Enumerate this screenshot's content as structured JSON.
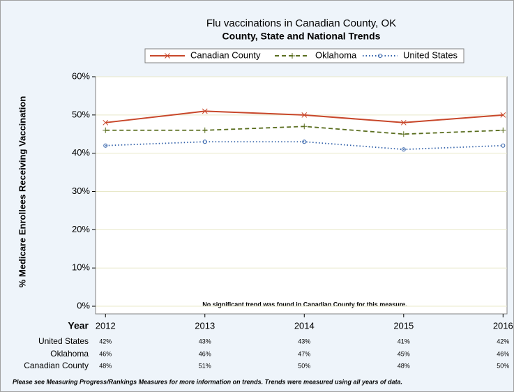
{
  "chart_data": {
    "type": "line",
    "title": "Flu vaccinations in Canadian County, OK",
    "subtitle": "County, State and National Trends",
    "ylabel": "% Medicare Enrollees Receiving Vaccination",
    "xlabel": "Year",
    "annotation": "No significant trend was found in Canadian County for this measure.",
    "footnote": "Please see Measuring Progress/Rankings Measures for more information on trends. Trends were measured using all years of data.",
    "x": [
      2012,
      2013,
      2014,
      2015,
      2016
    ],
    "xlim": [
      2011.9,
      2016.04
    ],
    "xticks": [
      2012,
      2013,
      2014,
      2015,
      2016
    ],
    "ylim": [
      -2,
      60
    ],
    "yticks": [
      {
        "value": 0,
        "label": "0%"
      },
      {
        "value": 10,
        "label": "10%"
      },
      {
        "value": 20,
        "label": "20%"
      },
      {
        "value": 30,
        "label": "30%"
      },
      {
        "value": 40,
        "label": "40%"
      },
      {
        "value": 50,
        "label": "50%"
      },
      {
        "value": 60,
        "label": "60%"
      }
    ],
    "grid": true,
    "series": [
      {
        "name": "Canadian County",
        "color": "#c8472a",
        "dash": "solid",
        "marker": "x",
        "values": [
          48,
          51,
          50,
          48,
          50
        ],
        "value_labels": [
          "48%",
          "51%",
          "50%",
          "48%",
          "50%"
        ]
      },
      {
        "name": "Oklahoma",
        "color": "#5a6e1f",
        "dash": "dashed",
        "marker": "plus",
        "values": [
          46,
          46,
          47,
          45,
          46
        ],
        "value_labels": [
          "46%",
          "46%",
          "47%",
          "45%",
          "46%"
        ]
      },
      {
        "name": "United States",
        "color": "#2f5fa8",
        "dash": "dotted",
        "marker": "circle",
        "values": [
          42,
          43,
          43,
          41,
          42
        ],
        "value_labels": [
          "42%",
          "43%",
          "43%",
          "41%",
          "42%"
        ]
      }
    ]
  }
}
